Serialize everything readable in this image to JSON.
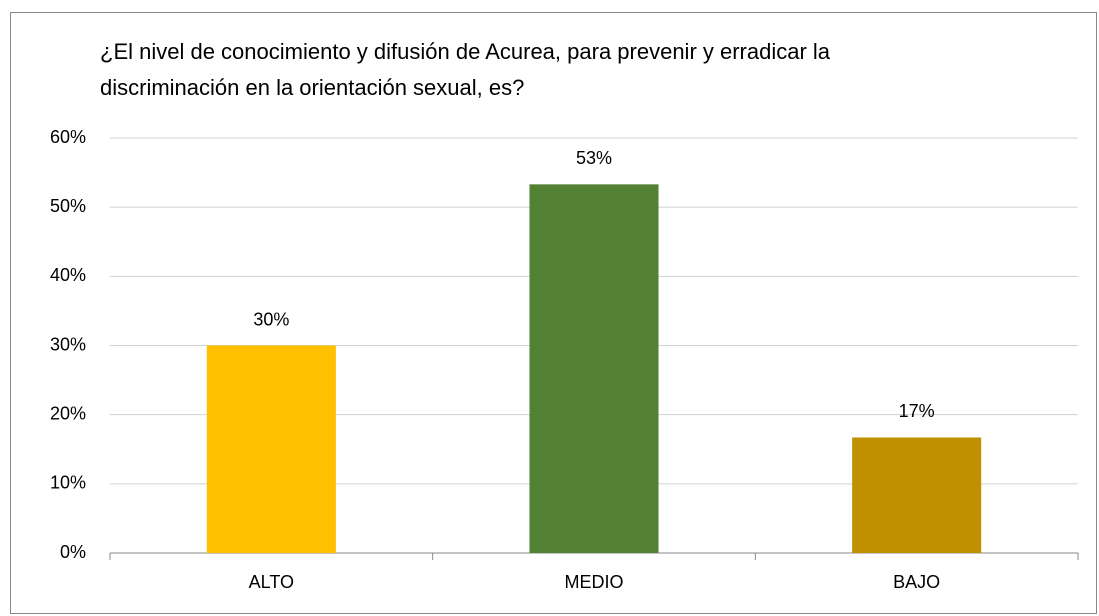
{
  "chart_data": {
    "type": "bar",
    "title": [
      "¿El nivel de conocimiento y difusión de Acurea, para prevenir y erradicar la",
      "discriminación en la orientación sexual, es?"
    ],
    "categories": [
      "ALTO",
      "MEDIO",
      "BAJO"
    ],
    "values": [
      30,
      53.3,
      16.7
    ],
    "value_labels": [
      "30%",
      "53%",
      "17%"
    ],
    "colors": [
      "#ffc000",
      "#548235",
      "#bf9000"
    ],
    "ylim": [
      0,
      60
    ],
    "yticks": [
      {
        "value": 0,
        "label": "0%"
      },
      {
        "value": 10,
        "label": "10%"
      },
      {
        "value": 20,
        "label": "20%"
      },
      {
        "value": 30,
        "label": "30%"
      },
      {
        "value": 40,
        "label": "40%"
      },
      {
        "value": 50,
        "label": "50%"
      },
      {
        "value": 60,
        "label": "60%"
      }
    ],
    "grid": true
  }
}
